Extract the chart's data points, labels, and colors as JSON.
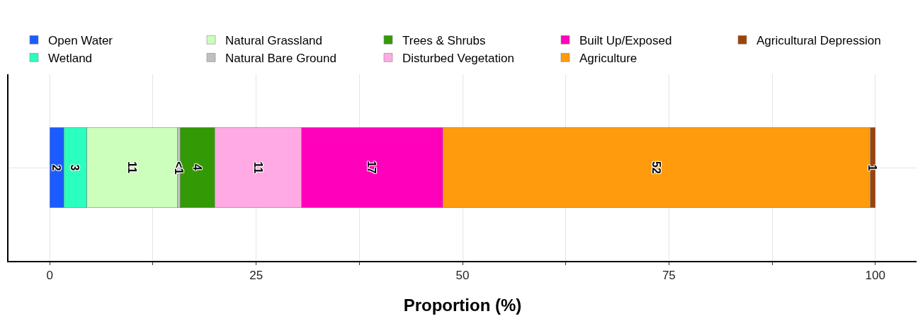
{
  "chart_data": {
    "type": "bar",
    "orientation": "horizontal",
    "stacked": true,
    "xlabel": "Proportion (%)",
    "categories": [
      null
    ],
    "series": [
      {
        "name": "Open Water",
        "color": "#1a5cff",
        "values": [
          1.7
        ],
        "value_labels": [
          "2"
        ]
      },
      {
        "name": "Wetland",
        "color": "#2affc0",
        "values": [
          2.8
        ],
        "value_labels": [
          "3"
        ]
      },
      {
        "name": "Natural Grassland",
        "color": "#ccffbb",
        "values": [
          11.0
        ],
        "value_labels": [
          "11"
        ]
      },
      {
        "name": "Natural Bare Ground",
        "color": "#c0c0c0",
        "values": [
          0.3
        ],
        "value_labels": [
          "<1"
        ]
      },
      {
        "name": "Trees & Shrubs",
        "color": "#339a06",
        "values": [
          4.2
        ],
        "value_labels": [
          "4"
        ]
      },
      {
        "name": "Disturbed Vegetation",
        "color": "#ffaae4",
        "values": [
          10.5
        ],
        "value_labels": [
          "11"
        ]
      },
      {
        "name": "Built Up/Exposed",
        "color": "#ff00bb",
        "values": [
          17.1
        ],
        "value_labels": [
          "17"
        ]
      },
      {
        "name": "Agriculture",
        "color": "#ff9b0d",
        "values": [
          51.8
        ],
        "value_labels": [
          "52"
        ]
      },
      {
        "name": "Agricultural Depression",
        "color": "#9e4306",
        "values": [
          0.6
        ],
        "value_labels": [
          "1"
        ]
      }
    ],
    "xlim": [
      -5,
      105
    ],
    "xticks": [
      0,
      {
        "value": 12.5,
        "label": null
      },
      25,
      {
        "value": 37.5,
        "label": null
      },
      50,
      {
        "value": 62.5,
        "label": null
      },
      75,
      {
        "value": 87.5,
        "label": null
      },
      100
    ],
    "grid": true,
    "legend": "top",
    "tick_labels": "x"
  }
}
